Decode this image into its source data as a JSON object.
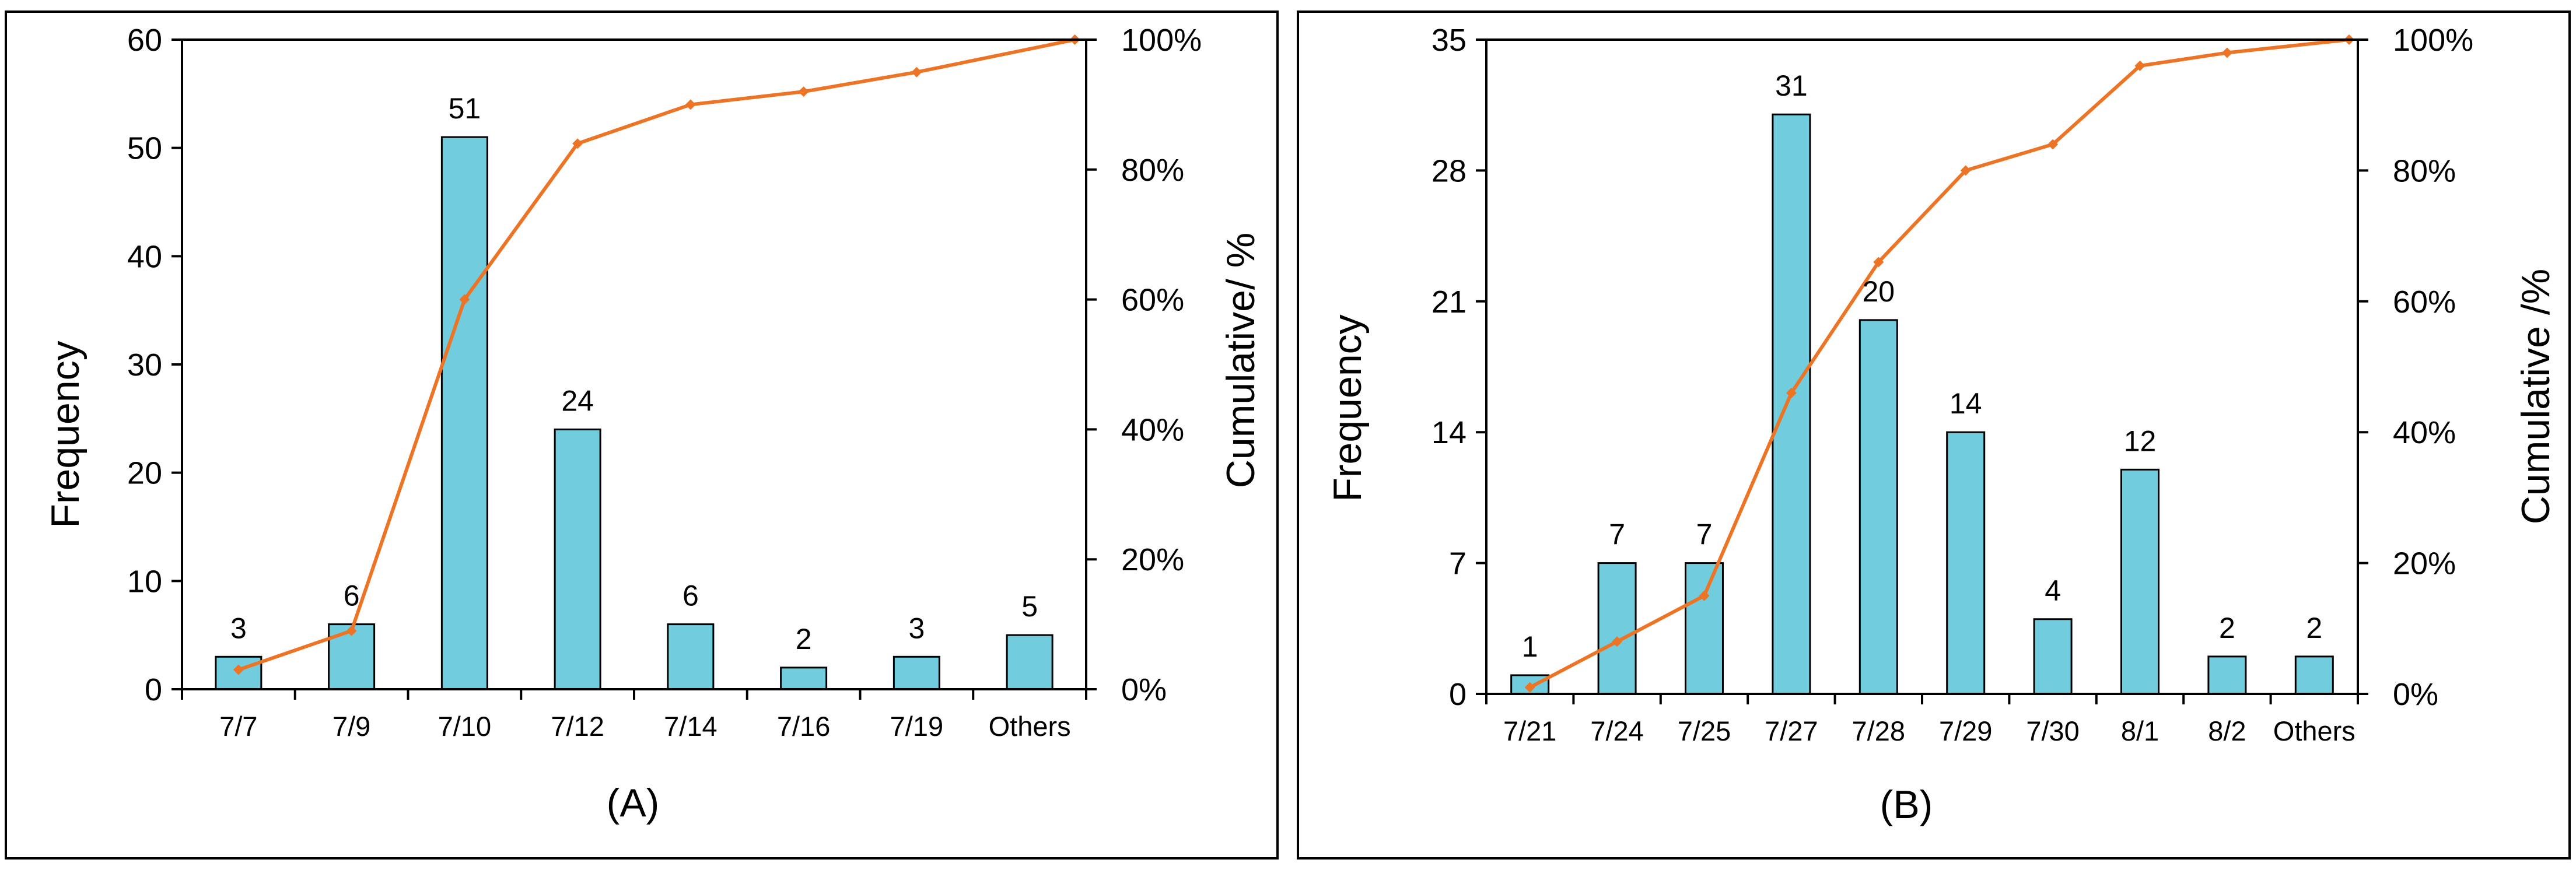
{
  "chart_data": [
    {
      "type": "bar",
      "panel_label": "(A)",
      "categories": [
        "7/7",
        "7/9",
        "7/10",
        "7/12",
        "7/14",
        "7/16",
        "7/19",
        "Others"
      ],
      "values": [
        3,
        6,
        51,
        24,
        6,
        2,
        3,
        5
      ],
      "data_labels": [
        "3",
        "6",
        "51",
        "24",
        "6",
        "2",
        "3",
        "5"
      ],
      "cumulative_percent": [
        3,
        9,
        60,
        84,
        90,
        92,
        95,
        100
      ],
      "ylabel": "Frequency",
      "y2label": "Cumulative/ %",
      "ylim": [
        0,
        60
      ],
      "yticks": [
        "0",
        "10",
        "20",
        "30",
        "40",
        "50",
        "60"
      ],
      "y2lim": [
        0,
        100
      ],
      "y2ticks": [
        "0%",
        "20%",
        "40%",
        "60%",
        "80%",
        "100%"
      ],
      "bar_color": "#71CCDE",
      "line_color": "#ED7424"
    },
    {
      "type": "bar",
      "panel_label": "(B)",
      "categories": [
        "7/21",
        "7/24",
        "7/25",
        "7/27",
        "7/28",
        "7/29",
        "7/30",
        "8/1",
        "8/2",
        "Others"
      ],
      "values": [
        1,
        7,
        7,
        31,
        20,
        14,
        4,
        12,
        2,
        2
      ],
      "data_labels": [
        "1",
        "7",
        "7",
        "31",
        "20",
        "14",
        "4",
        "12",
        "2",
        "2"
      ],
      "cumulative_percent": [
        1,
        8,
        15,
        46,
        66,
        80,
        84,
        96,
        98,
        100
      ],
      "ylabel": "Frequency",
      "y2label": "Cumulative /%",
      "ylim": [
        0,
        35
      ],
      "yticks": [
        "0",
        "7",
        "14",
        "21",
        "28",
        "35"
      ],
      "y2lim": [
        0,
        100
      ],
      "y2ticks": [
        "0%",
        "20%",
        "40%",
        "60%",
        "80%",
        "100%"
      ],
      "bar_color": "#71CCDE",
      "line_color": "#ED7424"
    }
  ]
}
